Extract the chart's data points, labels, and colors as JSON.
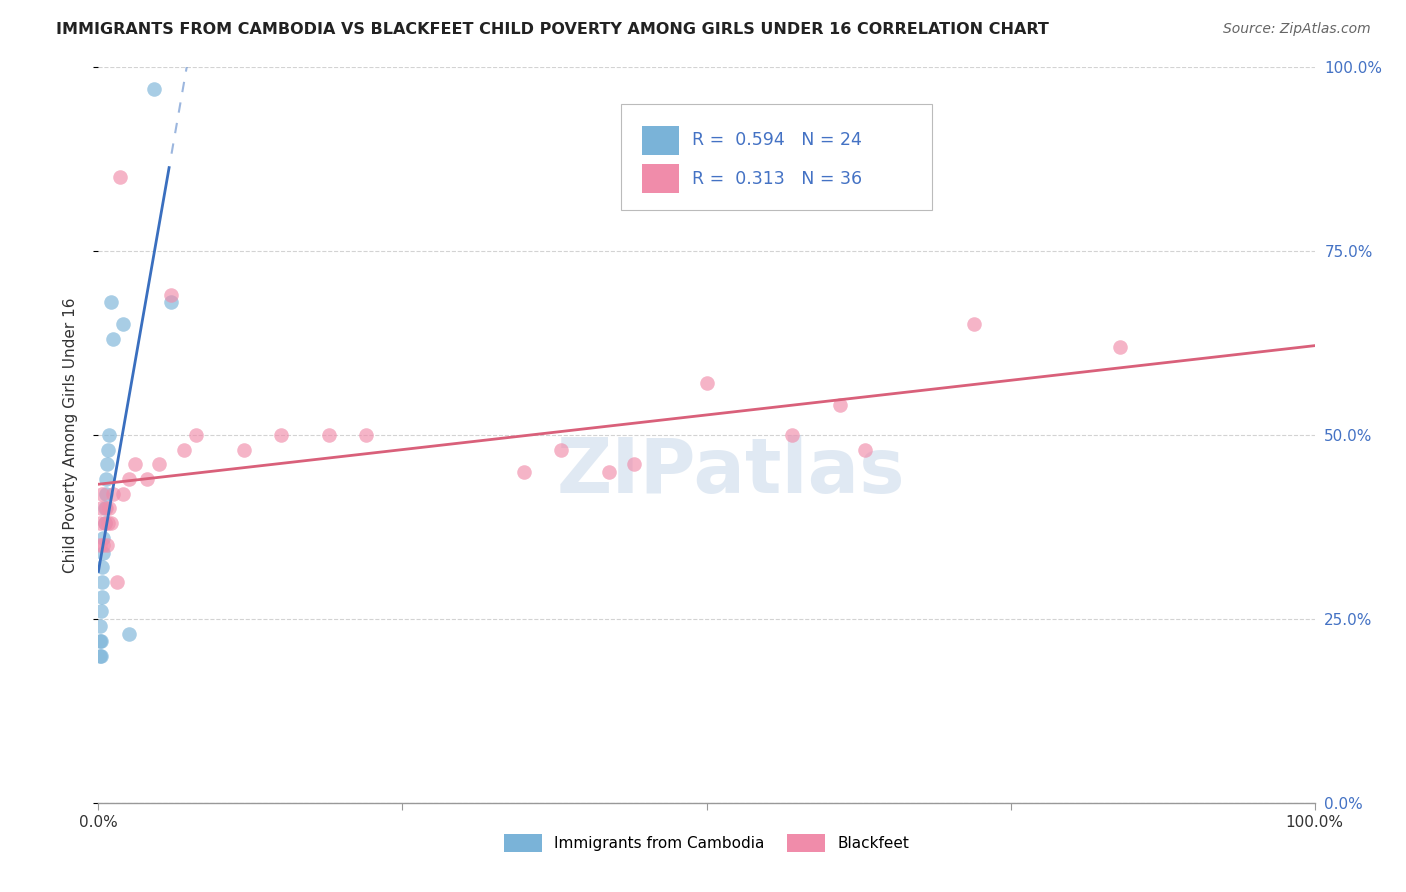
{
  "title": "IMMIGRANTS FROM CAMBODIA VS BLACKFEET CHILD POVERTY AMONG GIRLS UNDER 16 CORRELATION CHART",
  "source": "Source: ZipAtlas.com",
  "ylabel": "Child Poverty Among Girls Under 16",
  "watermark": "ZIPatlas",
  "cambodia_color": "#7ab3d8",
  "blackfeet_color": "#f08caa",
  "cambodia_line_color": "#3a6fbf",
  "blackfeet_line_color": "#d9607a",
  "background_color": "#ffffff",
  "grid_color": "#c8c8c8",
  "cambodia_x": [
    0.001,
    0.001,
    0.001,
    0.002,
    0.002,
    0.002,
    0.003,
    0.003,
    0.003,
    0.004,
    0.004,
    0.005,
    0.005,
    0.006,
    0.006,
    0.007,
    0.008,
    0.009,
    0.01,
    0.012,
    0.02,
    0.025,
    0.046,
    0.06
  ],
  "cambodia_y": [
    0.2,
    0.22,
    0.24,
    0.2,
    0.22,
    0.26,
    0.28,
    0.3,
    0.32,
    0.34,
    0.36,
    0.38,
    0.4,
    0.42,
    0.44,
    0.46,
    0.48,
    0.5,
    0.68,
    0.63,
    0.65,
    0.23,
    0.97,
    0.68
  ],
  "blackfeet_x": [
    0.001,
    0.001,
    0.002,
    0.003,
    0.004,
    0.005,
    0.006,
    0.007,
    0.008,
    0.009,
    0.01,
    0.012,
    0.015,
    0.018,
    0.02,
    0.025,
    0.03,
    0.04,
    0.05,
    0.06,
    0.07,
    0.08,
    0.12,
    0.15,
    0.19,
    0.22,
    0.35,
    0.38,
    0.42,
    0.44,
    0.5,
    0.57,
    0.61,
    0.63,
    0.72,
    0.84
  ],
  "blackfeet_y": [
    0.35,
    0.38,
    0.4,
    0.42,
    0.35,
    0.38,
    0.4,
    0.35,
    0.38,
    0.4,
    0.38,
    0.42,
    0.3,
    0.85,
    0.42,
    0.44,
    0.46,
    0.44,
    0.46,
    0.69,
    0.48,
    0.5,
    0.48,
    0.5,
    0.5,
    0.5,
    0.45,
    0.48,
    0.45,
    0.46,
    0.57,
    0.5,
    0.54,
    0.48,
    0.65,
    0.62
  ],
  "xlim": [
    0.0,
    1.0
  ],
  "ylim": [
    0.0,
    1.0
  ],
  "yticks": [
    0.0,
    0.25,
    0.5,
    0.75,
    1.0
  ],
  "ytick_labels_right": [
    "0.0%",
    "25.0%",
    "50.0%",
    "75.0%",
    "100.0%"
  ],
  "xtick_labels": [
    "0.0%",
    "100.0%"
  ],
  "marker_size": 110,
  "marker_alpha": 0.65
}
